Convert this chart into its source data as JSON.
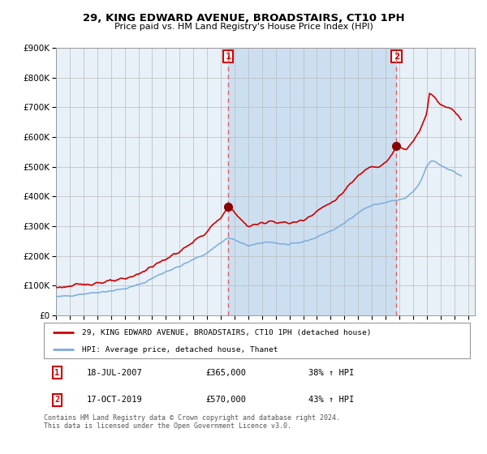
{
  "title": "29, KING EDWARD AVENUE, BROADSTAIRS, CT10 1PH",
  "subtitle": "Price paid vs. HM Land Registry's House Price Index (HPI)",
  "legend_line1": "29, KING EDWARD AVENUE, BROADSTAIRS, CT10 1PH (detached house)",
  "legend_line2": "HPI: Average price, detached house, Thanet",
  "annotation1_date": "18-JUL-2007",
  "annotation1_price": "£365,000",
  "annotation1_hpi": "38% ↑ HPI",
  "annotation2_date": "17-OCT-2019",
  "annotation2_price": "£570,000",
  "annotation2_hpi": "43% ↑ HPI",
  "footer": "Contains HM Land Registry data © Crown copyright and database right 2024.\nThis data is licensed under the Open Government Licence v3.0.",
  "sale1_x": 2007.54,
  "sale1_y": 365000,
  "sale2_x": 2019.79,
  "sale2_y": 570000,
  "red_line_color": "#cc0000",
  "blue_line_color": "#7aaddb",
  "plot_bg_color": "#e8f0f8",
  "shaded_region_color": "#ccdff0",
  "grid_color": "#bbbbbb",
  "dashed_line_color": "#e06060",
  "ylim": [
    0,
    900000
  ],
  "xlim_start": 1995.0,
  "xlim_end": 2025.5,
  "red_anchors": [
    [
      1995.0,
      95000
    ],
    [
      1996.0,
      98000
    ],
    [
      1997.0,
      105000
    ],
    [
      1998.0,
      110000
    ],
    [
      1999.0,
      115000
    ],
    [
      2000.0,
      122000
    ],
    [
      2000.5,
      130000
    ],
    [
      2001.5,
      152000
    ],
    [
      2002.0,
      165000
    ],
    [
      2003.0,
      190000
    ],
    [
      2004.0,
      215000
    ],
    [
      2005.0,
      248000
    ],
    [
      2006.0,
      280000
    ],
    [
      2006.5,
      308000
    ],
    [
      2007.0,
      325000
    ],
    [
      2007.4,
      355000
    ],
    [
      2007.54,
      365000
    ],
    [
      2007.8,
      358000
    ],
    [
      2008.0,
      345000
    ],
    [
      2008.5,
      320000
    ],
    [
      2009.0,
      300000
    ],
    [
      2009.5,
      305000
    ],
    [
      2010.0,
      310000
    ],
    [
      2010.5,
      318000
    ],
    [
      2011.0,
      315000
    ],
    [
      2011.5,
      312000
    ],
    [
      2012.0,
      310000
    ],
    [
      2012.5,
      315000
    ],
    [
      2013.0,
      320000
    ],
    [
      2013.5,
      335000
    ],
    [
      2014.0,
      352000
    ],
    [
      2014.5,
      365000
    ],
    [
      2015.0,
      378000
    ],
    [
      2015.5,
      395000
    ],
    [
      2016.0,
      418000
    ],
    [
      2016.5,
      445000
    ],
    [
      2017.0,
      468000
    ],
    [
      2017.5,
      490000
    ],
    [
      2018.0,
      505000
    ],
    [
      2018.5,
      500000
    ],
    [
      2019.0,
      515000
    ],
    [
      2019.5,
      540000
    ],
    [
      2019.79,
      570000
    ],
    [
      2020.0,
      565000
    ],
    [
      2020.5,
      555000
    ],
    [
      2021.0,
      585000
    ],
    [
      2021.5,
      625000
    ],
    [
      2022.0,
      680000
    ],
    [
      2022.2,
      745000
    ],
    [
      2022.5,
      738000
    ],
    [
      2022.8,
      718000
    ],
    [
      2023.0,
      710000
    ],
    [
      2023.5,
      700000
    ],
    [
      2024.0,
      690000
    ],
    [
      2024.5,
      660000
    ]
  ],
  "blue_anchors": [
    [
      1995.0,
      62000
    ],
    [
      1996.0,
      67000
    ],
    [
      1997.0,
      73000
    ],
    [
      1998.0,
      78000
    ],
    [
      1999.0,
      83000
    ],
    [
      2000.0,
      90000
    ],
    [
      2000.5,
      96000
    ],
    [
      2001.5,
      112000
    ],
    [
      2002.0,
      125000
    ],
    [
      2003.0,
      148000
    ],
    [
      2004.0,
      165000
    ],
    [
      2005.0,
      188000
    ],
    [
      2006.0,
      210000
    ],
    [
      2006.5,
      228000
    ],
    [
      2007.0,
      245000
    ],
    [
      2007.5,
      260000
    ],
    [
      2008.0,
      255000
    ],
    [
      2008.5,
      242000
    ],
    [
      2009.0,
      235000
    ],
    [
      2009.5,
      238000
    ],
    [
      2010.0,
      244000
    ],
    [
      2010.5,
      248000
    ],
    [
      2011.0,
      244000
    ],
    [
      2011.5,
      240000
    ],
    [
      2012.0,
      238000
    ],
    [
      2012.5,
      242000
    ],
    [
      2013.0,
      248000
    ],
    [
      2013.5,
      255000
    ],
    [
      2014.0,
      263000
    ],
    [
      2014.5,
      275000
    ],
    [
      2015.0,
      284000
    ],
    [
      2015.5,
      295000
    ],
    [
      2016.0,
      310000
    ],
    [
      2016.5,
      330000
    ],
    [
      2017.0,
      345000
    ],
    [
      2017.5,
      360000
    ],
    [
      2018.0,
      370000
    ],
    [
      2018.5,
      375000
    ],
    [
      2019.0,
      380000
    ],
    [
      2019.5,
      385000
    ],
    [
      2020.0,
      388000
    ],
    [
      2020.5,
      395000
    ],
    [
      2021.0,
      415000
    ],
    [
      2021.5,
      445000
    ],
    [
      2022.0,
      500000
    ],
    [
      2022.3,
      520000
    ],
    [
      2022.6,
      518000
    ],
    [
      2023.0,
      505000
    ],
    [
      2023.5,
      495000
    ],
    [
      2024.0,
      482000
    ],
    [
      2024.5,
      470000
    ]
  ]
}
